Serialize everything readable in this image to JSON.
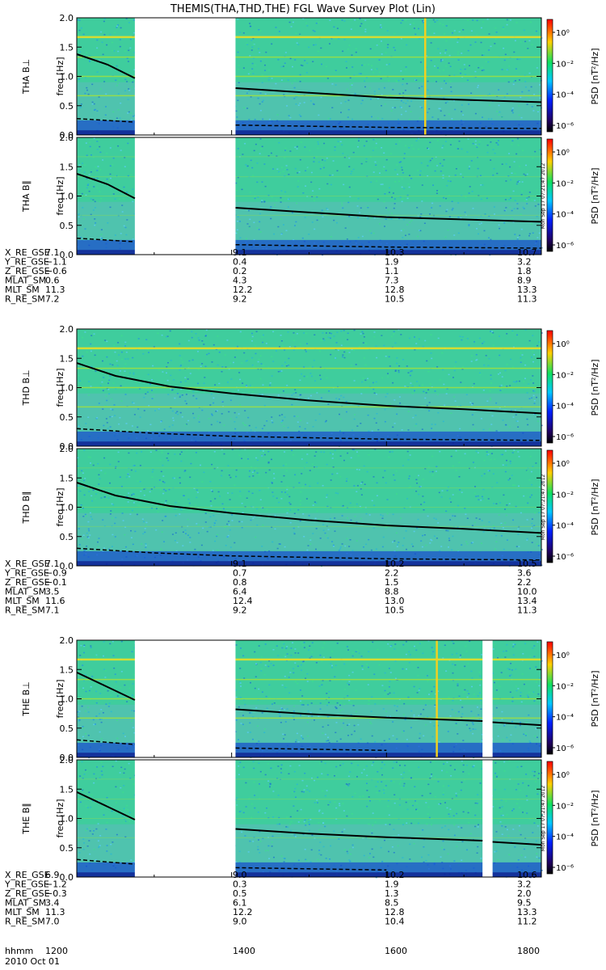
{
  "chart_data": {
    "type": "heatmap",
    "title": "THEMIS(THA,THD,THE) FGL Wave Survey Plot (Lin)",
    "date": "2010 Oct 01",
    "x_axis_label": "hhmm",
    "x_ticks": [
      "1200",
      "1400",
      "1600",
      "1800"
    ],
    "colorbar": {
      "label": "PSD [nT²/Hz]",
      "ticks": [
        "10⁰",
        "10⁻²",
        "10⁻⁴",
        "10⁻⁶"
      ],
      "colors": [
        "#ff0000",
        "#ffd000",
        "#10e060",
        "#00c8ff",
        "#0020ff",
        "#200060",
        "#000000"
      ]
    },
    "stamp": "Mon Sep 17 07:21:47 2012",
    "probes": [
      {
        "probe": "THA",
        "panels": [
          {
            "label": "THA B⊥",
            "ylabel": "freq [Hz]",
            "yticks": [
              "0.0",
              "0.5",
              "1.0",
              "1.5",
              "2.0"
            ],
            "gaps": [
              [
                1275,
                1405
              ]
            ],
            "vertical_lines": [
              1650
            ],
            "solid_line": [
              [
                1200,
                1.38
              ],
              [
                1240,
                1.2
              ],
              [
                1275,
                0.97
              ],
              [
                1405,
                0.8
              ],
              [
                1500,
                0.72
              ],
              [
                1600,
                0.64
              ],
              [
                1800,
                0.56
              ]
            ],
            "dashed_line": [
              [
                1200,
                0.28
              ],
              [
                1275,
                0.22
              ],
              [
                1405,
                0.17
              ],
              [
                1600,
                0.13
              ],
              [
                1800,
                0.11
              ]
            ]
          },
          {
            "label": "THA B∥",
            "ylabel": "freq [Hz]",
            "yticks": [
              "0.0",
              "0.5",
              "1.0",
              "1.5",
              "2.0"
            ],
            "gaps": [
              [
                1275,
                1405
              ]
            ],
            "vertical_lines": [],
            "solid_line": [
              [
                1200,
                1.38
              ],
              [
                1240,
                1.2
              ],
              [
                1275,
                0.96
              ],
              [
                1405,
                0.8
              ],
              [
                1500,
                0.72
              ],
              [
                1600,
                0.64
              ],
              [
                1800,
                0.56
              ]
            ],
            "dashed_line": [
              [
                1200,
                0.28
              ],
              [
                1275,
                0.22
              ],
              [
                1405,
                0.17
              ],
              [
                1600,
                0.13
              ],
              [
                1800,
                0.11
              ]
            ]
          }
        ],
        "ephemeris": {
          "rows": [
            {
              "label": "X_RE_GSE",
              "values": [
                "7.1",
                "9.1",
                "10.3",
                "10.7"
              ]
            },
            {
              "label": "Y_RE_GSE",
              "values": [
                "−1.1",
                "0.4",
                "1.9",
                "3.2"
              ]
            },
            {
              "label": "Z_RE_GSE",
              "values": [
                "−0.6",
                "0.2",
                "1.1",
                "1.8"
              ]
            },
            {
              "label": "MLAT_SM",
              "values": [
                "0.6",
                "4.3",
                "7.3",
                "8.9"
              ]
            },
            {
              "label": "MLT_SM",
              "values": [
                "11.3",
                "12.2",
                "12.8",
                "13.3"
              ]
            },
            {
              "label": "R_RE_SM",
              "values": [
                "7.2",
                "9.2",
                "10.5",
                "11.3"
              ]
            }
          ]
        }
      },
      {
        "probe": "THD",
        "panels": [
          {
            "label": "THD B⊥",
            "ylabel": "freq [Hz]",
            "yticks": [
              "0.0",
              "0.5",
              "1.0",
              "1.5",
              "2.0"
            ],
            "gaps": [],
            "vertical_lines": [],
            "solid_line": [
              [
                1200,
                1.42
              ],
              [
                1250,
                1.2
              ],
              [
                1320,
                1.02
              ],
              [
                1400,
                0.9
              ],
              [
                1500,
                0.78
              ],
              [
                1600,
                0.69
              ],
              [
                1700,
                0.63
              ],
              [
                1800,
                0.56
              ]
            ],
            "dashed_line": [
              [
                1200,
                0.3
              ],
              [
                1300,
                0.22
              ],
              [
                1400,
                0.17
              ],
              [
                1600,
                0.12
              ],
              [
                1800,
                0.1
              ]
            ]
          },
          {
            "label": "THD B∥",
            "ylabel": "freq [Hz]",
            "yticks": [
              "0.0",
              "0.5",
              "1.0",
              "1.5",
              "2.0"
            ],
            "gaps": [],
            "vertical_lines": [],
            "solid_line": [
              [
                1200,
                1.42
              ],
              [
                1250,
                1.2
              ],
              [
                1320,
                1.02
              ],
              [
                1400,
                0.9
              ],
              [
                1500,
                0.78
              ],
              [
                1600,
                0.69
              ],
              [
                1700,
                0.63
              ],
              [
                1800,
                0.56
              ]
            ],
            "dashed_line": [
              [
                1200,
                0.3
              ],
              [
                1300,
                0.22
              ],
              [
                1400,
                0.17
              ],
              [
                1600,
                0.12
              ],
              [
                1800,
                0.1
              ]
            ]
          }
        ],
        "ephemeris": {
          "rows": [
            {
              "label": "X_RE_GSE",
              "values": [
                "7.1",
                "9.1",
                "10.2",
                "10.5"
              ]
            },
            {
              "label": "Y_RE_GSE",
              "values": [
                "−0.9",
                "0.7",
                "2.2",
                "3.6"
              ]
            },
            {
              "label": "Z_RE_GSE",
              "values": [
                "−0.1",
                "0.8",
                "1.5",
                "2.2"
              ]
            },
            {
              "label": "MLAT_SM",
              "values": [
                "3.5",
                "6.4",
                "8.8",
                "10.0"
              ]
            },
            {
              "label": "MLT_SM",
              "values": [
                "11.6",
                "12.4",
                "13.0",
                "13.4"
              ]
            },
            {
              "label": "R_RE_SM",
              "values": [
                "7.1",
                "9.2",
                "10.5",
                "11.3"
              ]
            }
          ]
        }
      },
      {
        "probe": "THE",
        "panels": [
          {
            "label": "THE B⊥",
            "ylabel": "freq [Hz]",
            "yticks": [
              "0.0",
              "0.5",
              "1.0",
              "1.5",
              "2.0"
            ],
            "gaps": [
              [
                1275,
                1405
              ],
              [
                1724,
                1737
              ]
            ],
            "vertical_lines": [
              1665
            ],
            "solid_line": [
              [
                1200,
                1.45
              ],
              [
                1240,
                1.2
              ],
              [
                1275,
                0.98
              ],
              [
                1405,
                0.82
              ],
              [
                1500,
                0.74
              ],
              [
                1600,
                0.68
              ],
              [
                1724,
                0.62
              ],
              [
                1737,
                0.6
              ],
              [
                1800,
                0.55
              ]
            ],
            "dashed_line": [
              [
                1200,
                0.3
              ],
              [
                1275,
                0.22
              ],
              [
                1405,
                0.16
              ],
              [
                1600,
                0.12
              ],
              [
                1800,
                0.1
              ]
            ]
          },
          {
            "label": "THE B∥",
            "ylabel": "freq [Hz]",
            "yticks": [
              "0.0",
              "0.5",
              "1.0",
              "1.5",
              "2.0"
            ],
            "gaps": [
              [
                1275,
                1405
              ],
              [
                1724,
                1737
              ]
            ],
            "vertical_lines": [],
            "solid_line": [
              [
                1200,
                1.45
              ],
              [
                1240,
                1.2
              ],
              [
                1275,
                0.98
              ],
              [
                1405,
                0.82
              ],
              [
                1500,
                0.74
              ],
              [
                1600,
                0.68
              ],
              [
                1724,
                0.62
              ],
              [
                1737,
                0.6
              ],
              [
                1800,
                0.55
              ]
            ],
            "dashed_line": [
              [
                1200,
                0.3
              ],
              [
                1275,
                0.22
              ],
              [
                1405,
                0.16
              ],
              [
                1600,
                0.12
              ],
              [
                1800,
                0.1
              ]
            ]
          }
        ],
        "ephemeris": {
          "rows": [
            {
              "label": "X_RE_GSE",
              "values": [
                "6.9",
                "9.0",
                "10.2",
                "10.6"
              ]
            },
            {
              "label": "Y_RE_GSE",
              "values": [
                "−1.2",
                "0.3",
                "1.9",
                "3.2"
              ]
            },
            {
              "label": "Z_RE_GSE",
              "values": [
                "−0.3",
                "0.5",
                "1.3",
                "2.0"
              ]
            },
            {
              "label": "MLAT_SM",
              "values": [
                "3.4",
                "6.1",
                "8.5",
                "9.5"
              ]
            },
            {
              "label": "MLT_SM",
              "values": [
                "11.3",
                "12.2",
                "12.8",
                "13.3"
              ]
            },
            {
              "label": "R_RE_SM",
              "values": [
                "7.0",
                "9.0",
                "10.4",
                "11.2"
              ]
            }
          ]
        }
      }
    ]
  }
}
